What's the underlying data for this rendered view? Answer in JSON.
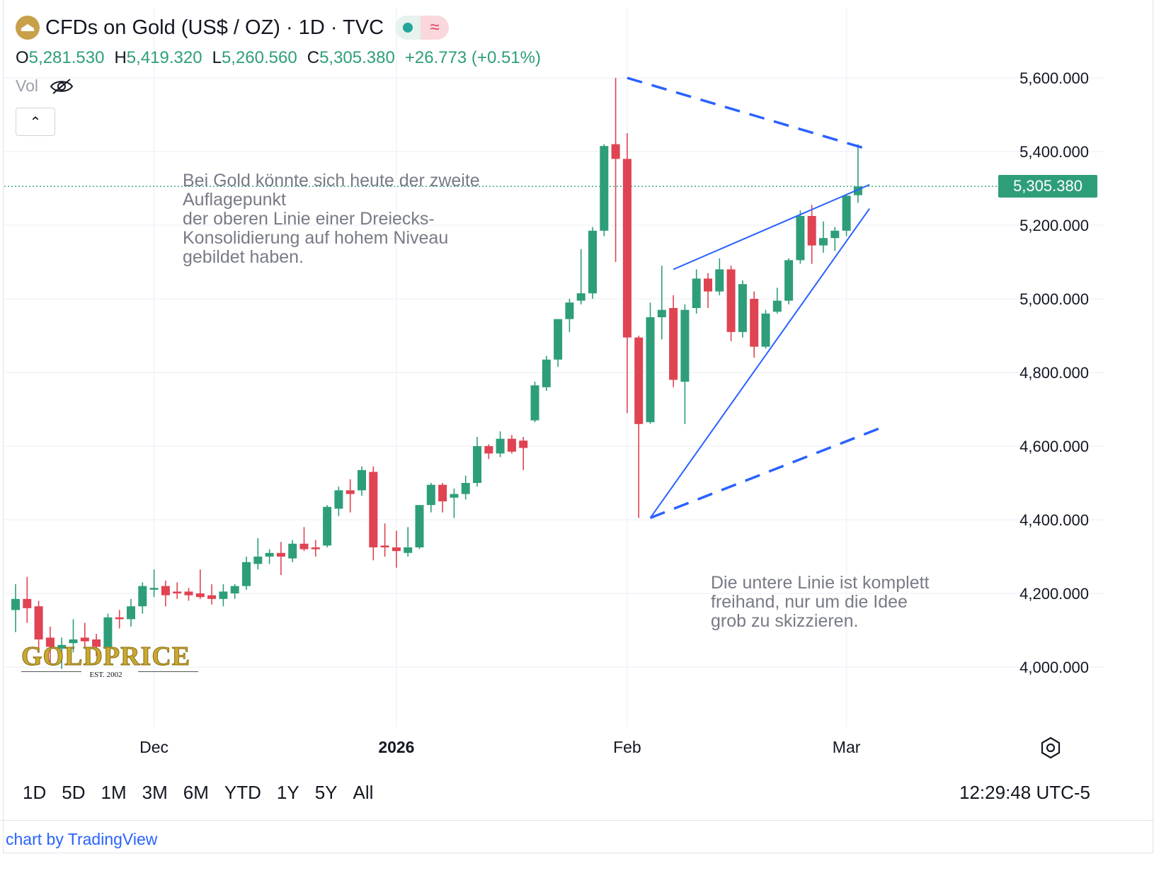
{
  "header": {
    "title": "CFDs on Gold (US$ / OZ) · 1D · TVC",
    "wave_glyph": "≈",
    "open_key": "O",
    "open": "5,281.530",
    "high_key": "H",
    "high": "5,419.320",
    "low_key": "L",
    "low": "5,260.560",
    "close_key": "C",
    "close": "5,305.380",
    "change": "+26.773 (+0.51%)",
    "vol_label": "Vol",
    "collapse_glyph": "⌃"
  },
  "price_label": "5,305.380",
  "notes": {
    "top": "Bei Gold könnte sich heute der zweite\nAuflagepunkt\nder oberen Linie einer Dreiecks-\nKonsolidierung auf hohem Niveau\ngebildet haben.",
    "bottom": "Die untere Linie ist komplett\nfreihand, nur um die Idee\ngrob zu skizzieren."
  },
  "watermark": {
    "word": "GOLDPRICE",
    "est": "EST. 2002"
  },
  "ranges": [
    "1D",
    "5D",
    "1M",
    "3M",
    "6M",
    "YTD",
    "1Y",
    "5Y",
    "All"
  ],
  "clock": "12:29:48 UTC-5",
  "credit": "chart by TradingView",
  "colors": {
    "up": "#2e9e7a",
    "down": "#e04352",
    "trend": "#2962ff",
    "grid": "#f0f3fa",
    "accent": "#2e9e7a"
  },
  "chart_data": {
    "type": "candlestick",
    "title": "CFDs on Gold (US$ / OZ) · 1D · TVC",
    "y_ticks": [
      "5,600.000",
      "5,400.000",
      "5,200.000",
      "5,000.000",
      "4,800.000",
      "4,600.000",
      "4,400.000",
      "4,200.000",
      "4,000.000"
    ],
    "y_tick_values": [
      5600,
      5400,
      5200,
      5000,
      4800,
      4600,
      4400,
      4200,
      4000
    ],
    "ylim": [
      3810,
      5800
    ],
    "x_labels": [
      {
        "label": "Dec",
        "index": 12,
        "bold": false
      },
      {
        "label": "2026",
        "index": 33,
        "bold": true
      },
      {
        "label": "Feb",
        "index": 53,
        "bold": false
      },
      {
        "label": "Mar",
        "index": 72,
        "bold": false
      }
    ],
    "last_close": 5305.38,
    "ohlc": [
      [
        4155,
        4225,
        4095,
        4185
      ],
      [
        4185,
        4245,
        4120,
        4160
      ],
      [
        4165,
        4180,
        4050,
        4075
      ],
      [
        4080,
        4110,
        4010,
        4055
      ],
      [
        4050,
        4080,
        3995,
        4060
      ],
      [
        4065,
        4130,
        4040,
        4075
      ],
      [
        4080,
        4120,
        4055,
        4070
      ],
      [
        4075,
        4090,
        4030,
        4055
      ],
      [
        4055,
        4145,
        4045,
        4135
      ],
      [
        4135,
        4155,
        4105,
        4130
      ],
      [
        4130,
        4185,
        4110,
        4165
      ],
      [
        4165,
        4230,
        4145,
        4220
      ],
      [
        4210,
        4265,
        4190,
        4215
      ],
      [
        4220,
        4235,
        4165,
        4195
      ],
      [
        4205,
        4230,
        4185,
        4200
      ],
      [
        4205,
        4215,
        4180,
        4195
      ],
      [
        4200,
        4265,
        4185,
        4190
      ],
      [
        4195,
        4225,
        4170,
        4185
      ],
      [
        4185,
        4225,
        4165,
        4205
      ],
      [
        4200,
        4225,
        4185,
        4220
      ],
      [
        4220,
        4300,
        4210,
        4285
      ],
      [
        4280,
        4350,
        4265,
        4300
      ],
      [
        4300,
        4320,
        4280,
        4310
      ],
      [
        4310,
        4340,
        4250,
        4300
      ],
      [
        4295,
        4345,
        4285,
        4335
      ],
      [
        4335,
        4380,
        4315,
        4320
      ],
      [
        4325,
        4345,
        4300,
        4320
      ],
      [
        4330,
        4440,
        4325,
        4435
      ],
      [
        4430,
        4490,
        4410,
        4480
      ],
      [
        4480,
        4510,
        4420,
        4470
      ],
      [
        4480,
        4545,
        4465,
        4535
      ],
      [
        4530,
        4545,
        4290,
        4325
      ],
      [
        4330,
        4390,
        4300,
        4325
      ],
      [
        4325,
        4370,
        4270,
        4315
      ],
      [
        4310,
        4380,
        4300,
        4325
      ],
      [
        4325,
        4440,
        4320,
        4440
      ],
      [
        4440,
        4500,
        4420,
        4495
      ],
      [
        4495,
        4500,
        4420,
        4450
      ],
      [
        4460,
        4485,
        4405,
        4470
      ],
      [
        4470,
        4520,
        4455,
        4500
      ],
      [
        4500,
        4625,
        4490,
        4600
      ],
      [
        4600,
        4605,
        4565,
        4580
      ],
      [
        4580,
        4640,
        4570,
        4620
      ],
      [
        4620,
        4630,
        4580,
        4585
      ],
      [
        4615,
        4625,
        4535,
        4595
      ],
      [
        4670,
        4775,
        4665,
        4765
      ],
      [
        4760,
        4845,
        4750,
        4835
      ],
      [
        4835,
        4945,
        4815,
        4945
      ],
      [
        4945,
        5000,
        4910,
        4990
      ],
      [
        4995,
        5135,
        4985,
        5015
      ],
      [
        5015,
        5195,
        5000,
        5185
      ],
      [
        5185,
        5420,
        5170,
        5415
      ],
      [
        5420,
        5600,
        5100,
        5380
      ],
      [
        5380,
        5450,
        4690,
        4895
      ],
      [
        4895,
        4900,
        4405,
        4660
      ],
      [
        4665,
        4990,
        4660,
        4950
      ],
      [
        4950,
        5090,
        4890,
        4970
      ],
      [
        4975,
        5010,
        4760,
        4780
      ],
      [
        4775,
        4985,
        4660,
        4970
      ],
      [
        4975,
        5080,
        4960,
        5055
      ],
      [
        5055,
        5070,
        4975,
        5020
      ],
      [
        5020,
        5110,
        5010,
        5080
      ],
      [
        5080,
        5090,
        4885,
        4910
      ],
      [
        4910,
        5050,
        4895,
        5040
      ],
      [
        5000,
        5020,
        4840,
        4870
      ],
      [
        4870,
        4970,
        4865,
        4960
      ],
      [
        4965,
        5030,
        4960,
        4995
      ],
      [
        4995,
        5110,
        4985,
        5105
      ],
      [
        5105,
        5240,
        5095,
        5225
      ],
      [
        5225,
        5255,
        5095,
        5145
      ],
      [
        5145,
        5210,
        5125,
        5165
      ],
      [
        5165,
        5195,
        5130,
        5185
      ],
      [
        5185,
        5285,
        5170,
        5280
      ],
      [
        5281.53,
        5419.32,
        5260.56,
        5305.38
      ]
    ],
    "lines": [
      {
        "name": "",
        "style": "dashed",
        "points": [
          [
            53,
            5600
          ],
          [
            74,
            5405
          ]
        ]
      },
      {
        "name": "",
        "style": "solid",
        "points": [
          [
            57,
            5080
          ],
          [
            74,
            5310
          ]
        ]
      },
      {
        "name": "",
        "style": "solid",
        "points": [
          [
            55,
            4405
          ],
          [
            74,
            5245
          ]
        ]
      },
      {
        "name": "",
        "style": "dashed",
        "points": [
          [
            55,
            4405
          ],
          [
            75,
            4650
          ]
        ]
      }
    ]
  }
}
